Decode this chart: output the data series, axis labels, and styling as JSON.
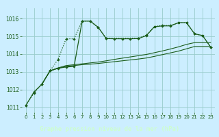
{
  "title": "Graphe pression niveau de la mer (hPa)",
  "bg_color": "#cceeff",
  "plot_bg": "#cceeff",
  "grid_color": "#99cccc",
  "line_color": "#1a5c1a",
  "title_bg": "#2d5a1b",
  "title_fg": "#ccffcc",
  "xlim": [
    -0.5,
    23.5
  ],
  "ylim": [
    1010.7,
    1016.6
  ],
  "yticks": [
    1011,
    1012,
    1013,
    1014,
    1015,
    1016
  ],
  "xticks": [
    0,
    1,
    2,
    3,
    4,
    5,
    6,
    7,
    8,
    9,
    10,
    11,
    12,
    13,
    14,
    15,
    16,
    17,
    18,
    19,
    20,
    21,
    22,
    23
  ],
  "line1_x": [
    0,
    1,
    2,
    3,
    4,
    5,
    6,
    7,
    8,
    9,
    10,
    14,
    15,
    16,
    17,
    18,
    19,
    20,
    21,
    22,
    23
  ],
  "line1_y": [
    1011.1,
    1011.8,
    1012.3,
    1013.05,
    1013.7,
    1014.87,
    1014.87,
    1015.87,
    1015.87,
    1015.52,
    1014.9,
    1014.9,
    1015.07,
    1015.57,
    1015.62,
    1015.62,
    1015.78,
    1015.78,
    1015.15,
    1015.05,
    1014.4
  ],
  "line2_x": [
    0,
    1,
    2,
    3,
    4,
    5,
    6,
    7,
    8,
    9,
    10,
    11,
    12,
    13,
    14,
    15,
    16,
    17,
    18,
    19,
    20,
    21,
    22,
    23
  ],
  "line2_y": [
    1011.1,
    1011.85,
    1012.3,
    1013.05,
    1013.2,
    1013.27,
    1013.3,
    1015.87,
    1015.87,
    1015.52,
    1014.88,
    1014.87,
    1014.87,
    1014.87,
    1014.88,
    1015.05,
    1015.55,
    1015.6,
    1015.6,
    1015.78,
    1015.78,
    1015.15,
    1015.05,
    1014.4
  ],
  "line3_x": [
    2,
    3,
    4,
    5,
    6,
    7,
    8,
    9,
    10,
    11,
    12,
    13,
    14,
    15,
    16,
    17,
    18,
    19,
    20,
    21,
    22,
    23
  ],
  "line3_y": [
    1012.3,
    1013.05,
    1013.2,
    1013.3,
    1013.35,
    1013.4,
    1013.43,
    1013.47,
    1013.52,
    1013.57,
    1013.62,
    1013.67,
    1013.72,
    1013.78,
    1013.87,
    1013.97,
    1014.07,
    1014.17,
    1014.3,
    1014.43,
    1014.43,
    1014.43
  ],
  "line4_x": [
    2,
    3,
    4,
    5,
    6,
    7,
    8,
    9,
    10,
    11,
    12,
    13,
    14,
    15,
    16,
    17,
    18,
    19,
    20,
    21,
    22,
    23
  ],
  "line4_y": [
    1012.3,
    1013.05,
    1013.22,
    1013.35,
    1013.4,
    1013.45,
    1013.5,
    1013.55,
    1013.62,
    1013.7,
    1013.77,
    1013.84,
    1013.91,
    1013.98,
    1014.08,
    1014.18,
    1014.29,
    1014.41,
    1014.55,
    1014.65,
    1014.65,
    1014.65
  ]
}
